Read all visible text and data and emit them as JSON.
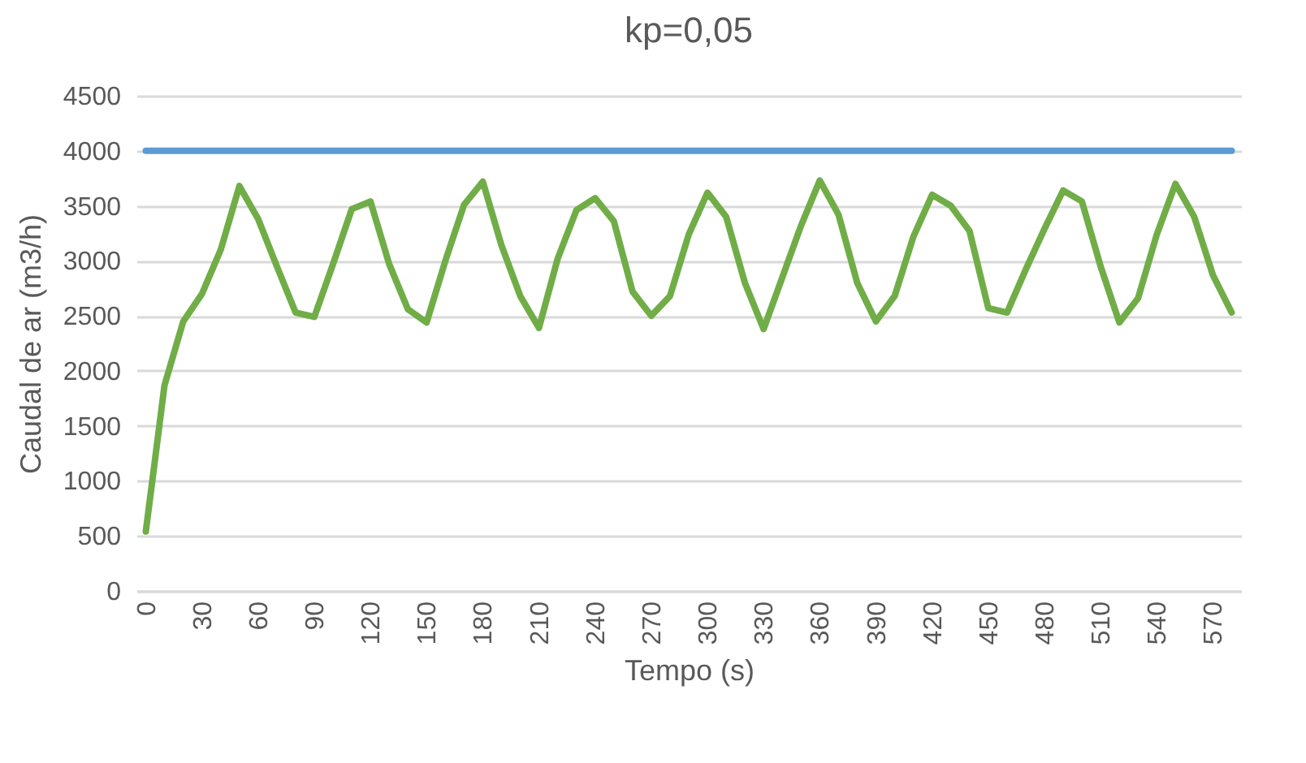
{
  "chart_data": {
    "type": "line",
    "title": "kp=0,05",
    "xlabel": "Tempo (s)",
    "ylabel": "Caudal de ar (m3/h)",
    "categories": [
      "0",
      null,
      null,
      "30",
      null,
      null,
      "60",
      null,
      null,
      "90",
      null,
      null,
      "120",
      null,
      null,
      "150",
      null,
      null,
      "180",
      null,
      null,
      "210",
      null,
      null,
      "240",
      null,
      null,
      "270",
      null,
      null,
      "300",
      null,
      null,
      "330",
      null,
      null,
      "360",
      null,
      null,
      "390",
      null,
      null,
      "420",
      null,
      null,
      "450",
      null,
      null,
      "480",
      null,
      null,
      "510",
      null,
      null,
      "540",
      null,
      null,
      "570",
      null
    ],
    "series": [
      {
        "color": "#5b9bd5",
        "values": [
          4000,
          4000,
          4000,
          4000,
          4000,
          4000,
          4000,
          4000,
          4000,
          4000,
          4000,
          4000,
          4000,
          4000,
          4000,
          4000,
          4000,
          4000,
          4000,
          4000,
          4000,
          4000,
          4000,
          4000,
          4000,
          4000,
          4000,
          4000,
          4000,
          4000,
          4000,
          4000,
          4000,
          4000,
          4000,
          4000,
          4000,
          4000,
          4000,
          4000,
          4000,
          4000,
          4000,
          4000,
          4000,
          4000,
          4000,
          4000,
          4000,
          4000,
          4000,
          4000,
          4000,
          4000,
          4000,
          4000,
          4000,
          4000,
          4000
        ]
      },
      {
        "color": "#70ad47",
        "values": [
          540,
          1870,
          2450,
          2700,
          3100,
          3680,
          3380,
          2950,
          2530,
          2490,
          2970,
          3470,
          3540,
          2970,
          2560,
          2440,
          3000,
          3510,
          3720,
          3140,
          2680,
          2390,
          3020,
          3460,
          3570,
          3360,
          2720,
          2500,
          2680,
          3240,
          3620,
          3400,
          2800,
          2380,
          2850,
          3320,
          3730,
          3420,
          2800,
          2450,
          2680,
          3220,
          3600,
          3500,
          3270,
          2570,
          2530,
          2920,
          3290,
          3640,
          3540,
          2950,
          2440,
          2660,
          3240,
          3700,
          3400,
          2870,
          2530
        ]
      }
    ],
    "ylim": [
      0,
      4500
    ],
    "yticks": [
      0,
      500,
      1000,
      1500,
      2000,
      2500,
      3000,
      3500,
      4000,
      4500
    ],
    "grid": "y",
    "legend": false
  }
}
